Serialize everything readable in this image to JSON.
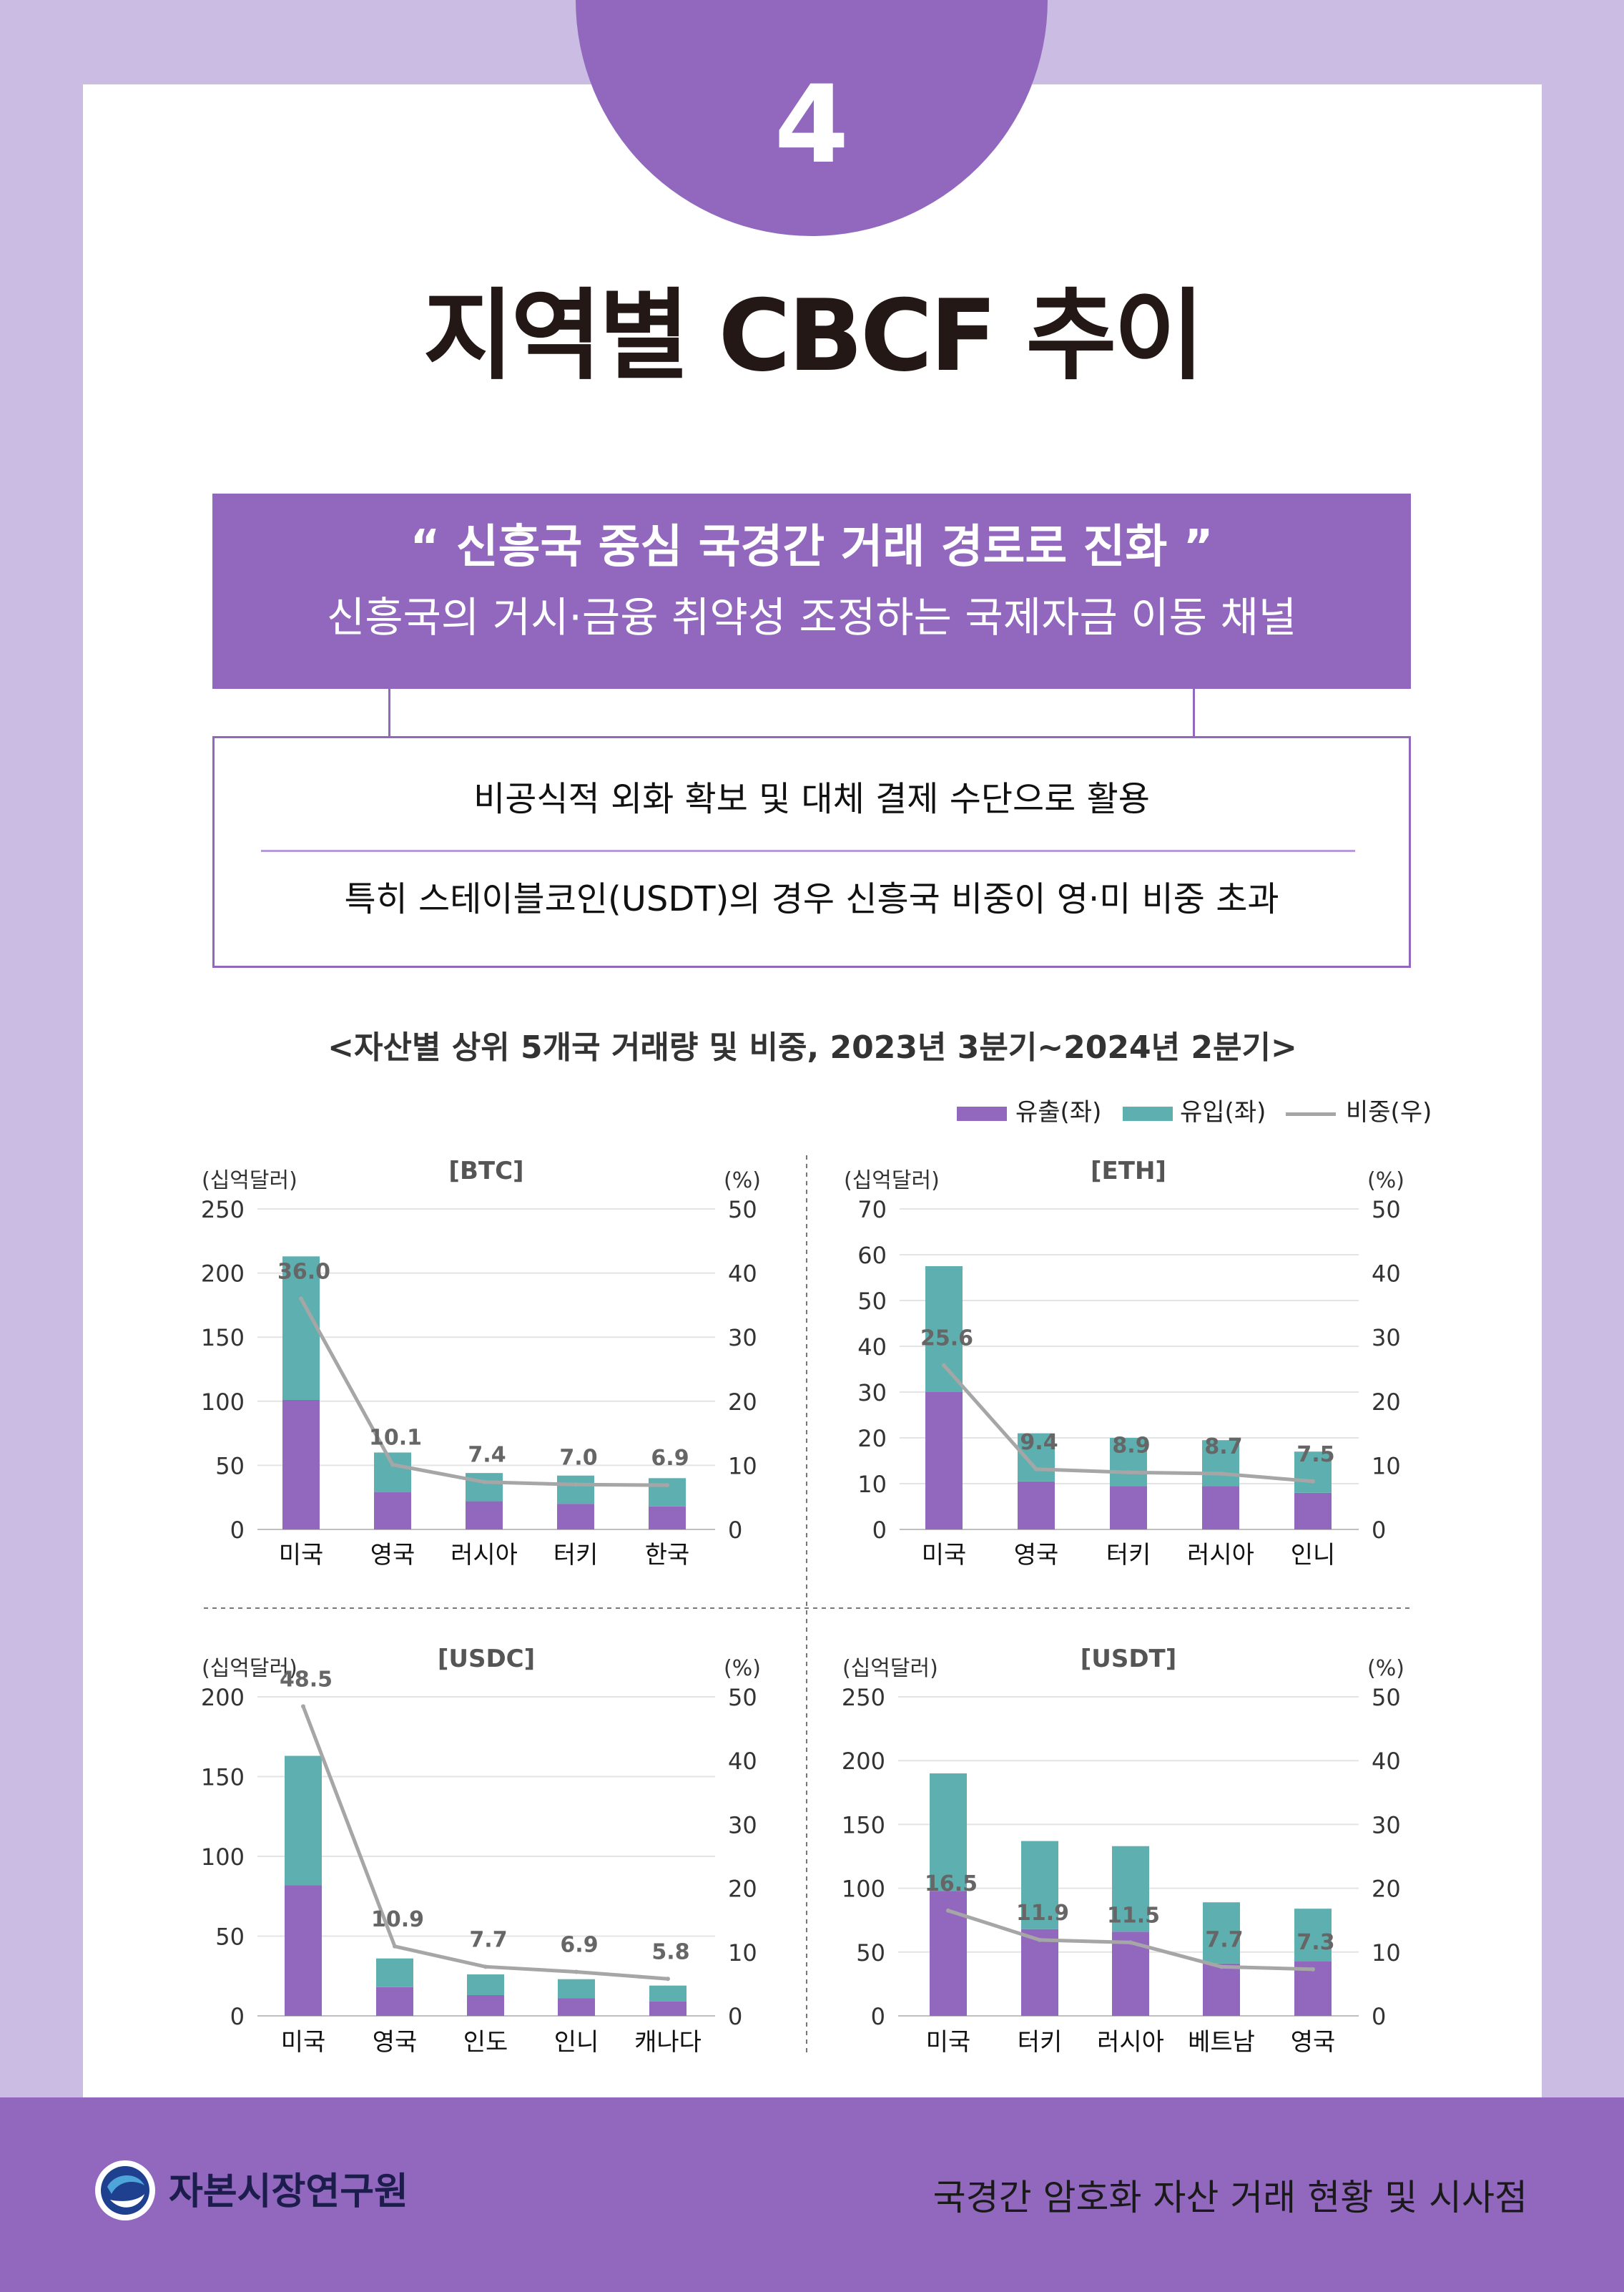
{
  "header": {
    "number": "4",
    "title": "지역별 CBCF 추이"
  },
  "highlight": {
    "quote": "“ 신흥국 중심 국경간 거래 경로로 진화 ”",
    "subtitle": "신흥국의 거시·금융 취약성 조정하는 국제자금 이동 채널"
  },
  "points": {
    "line1": "비공식적 외화 확보 및 대체 결제 수단으로 활용",
    "line2": "특히 스테이블코인(USDT)의 경우 신흥국 비중이 영·미 비중 초과"
  },
  "charts_title": "<자산별 상위 5개국 거래량 및 비중, 2023년 3분기~2024년 2분기>",
  "legend": {
    "outflow": "유출(좌)",
    "inflow": "유입(좌)",
    "share": "비중(우)"
  },
  "colors": {
    "outflow": "#9168be",
    "inflow": "#5eb0b0",
    "share": "#a6a6a6",
    "accent": "#9168be"
  },
  "chart_data": [
    {
      "type": "bar",
      "title": "[BTC]",
      "ylabel_left": "(십억달러)",
      "ylabel_right": "(%)",
      "ylim_left": [
        0,
        250
      ],
      "ylim_right": [
        0,
        50
      ],
      "yticks_left": [
        0,
        50,
        100,
        150,
        200,
        250
      ],
      "yticks_right": [
        0,
        10,
        20,
        30,
        40,
        50
      ],
      "categories": [
        "미국",
        "영국",
        "러시아",
        "터키",
        "한국"
      ],
      "series": [
        {
          "name": "유출(좌)",
          "values": [
            101,
            29,
            22,
            20,
            18
          ]
        },
        {
          "name": "유입(좌)",
          "values": [
            112,
            31,
            22,
            22,
            22
          ]
        },
        {
          "name": "비중(우)",
          "values": [
            36.0,
            10.1,
            7.4,
            7.0,
            6.9
          ]
        }
      ],
      "labels": [
        "36.0",
        "10.1",
        "7.4",
        "7.0",
        "6.9"
      ]
    },
    {
      "type": "bar",
      "title": "[ETH]",
      "ylabel_left": "(십억달러)",
      "ylabel_right": "(%)",
      "ylim_left": [
        0,
        70
      ],
      "ylim_right": [
        0,
        50
      ],
      "yticks_left": [
        0,
        10,
        20,
        30,
        40,
        50,
        60,
        70
      ],
      "yticks_right": [
        0,
        10,
        20,
        30,
        40,
        50
      ],
      "categories": [
        "미국",
        "영국",
        "터키",
        "러시아",
        "인니"
      ],
      "series": [
        {
          "name": "유출(좌)",
          "values": [
            30,
            10.5,
            9.5,
            9.5,
            8
          ]
        },
        {
          "name": "유입(좌)",
          "values": [
            27.5,
            10.5,
            10.5,
            10,
            9
          ]
        },
        {
          "name": "비중(우)",
          "values": [
            25.6,
            9.4,
            8.9,
            8.7,
            7.5
          ]
        }
      ],
      "labels": [
        "25.6",
        "9.4",
        "8.9",
        "8.7",
        "7.5"
      ]
    },
    {
      "type": "bar",
      "title": "[USDC]",
      "ylabel_left": "(십억달러)",
      "ylabel_right": "(%)",
      "ylim_left": [
        0,
        200
      ],
      "ylim_right": [
        0,
        50
      ],
      "yticks_left": [
        0,
        50,
        100,
        150,
        200
      ],
      "yticks_right": [
        0,
        10,
        20,
        30,
        40,
        50
      ],
      "categories": [
        "미국",
        "영국",
        "인도",
        "인니",
        "캐나다"
      ],
      "series": [
        {
          "name": "유출(좌)",
          "values": [
            82,
            18,
            13,
            11,
            9
          ]
        },
        {
          "name": "유입(좌)",
          "values": [
            81,
            18,
            13,
            12,
            10
          ]
        },
        {
          "name": "비중(우)",
          "values": [
            48.5,
            10.9,
            7.7,
            6.9,
            5.8
          ]
        }
      ],
      "labels": [
        "48.5",
        "10.9",
        "7.7",
        "6.9",
        "5.8"
      ]
    },
    {
      "type": "bar",
      "title": "[USDT]",
      "ylabel_left": "(십억달러)",
      "ylabel_right": "(%)",
      "ylim_left": [
        0,
        250
      ],
      "ylim_right": [
        0,
        50
      ],
      "yticks_left": [
        0,
        50,
        100,
        150,
        200,
        250
      ],
      "yticks_right": [
        0,
        10,
        20,
        30,
        40,
        50
      ],
      "categories": [
        "미국",
        "터키",
        "러시아",
        "베트남",
        "영국"
      ],
      "series": [
        {
          "name": "유출(좌)",
          "values": [
            98,
            68,
            66,
            41,
            43
          ]
        },
        {
          "name": "유입(좌)",
          "values": [
            92,
            69,
            67,
            48,
            41
          ]
        },
        {
          "name": "비중(우)",
          "values": [
            16.5,
            11.9,
            11.5,
            7.7,
            7.3
          ]
        }
      ],
      "labels": [
        "16.5",
        "11.9",
        "11.5",
        "7.7",
        "7.3"
      ]
    }
  ],
  "footer": {
    "org": "자본시장연구원",
    "report_title": "국경간 암호화 자산 거래 현황 및 시사점"
  }
}
